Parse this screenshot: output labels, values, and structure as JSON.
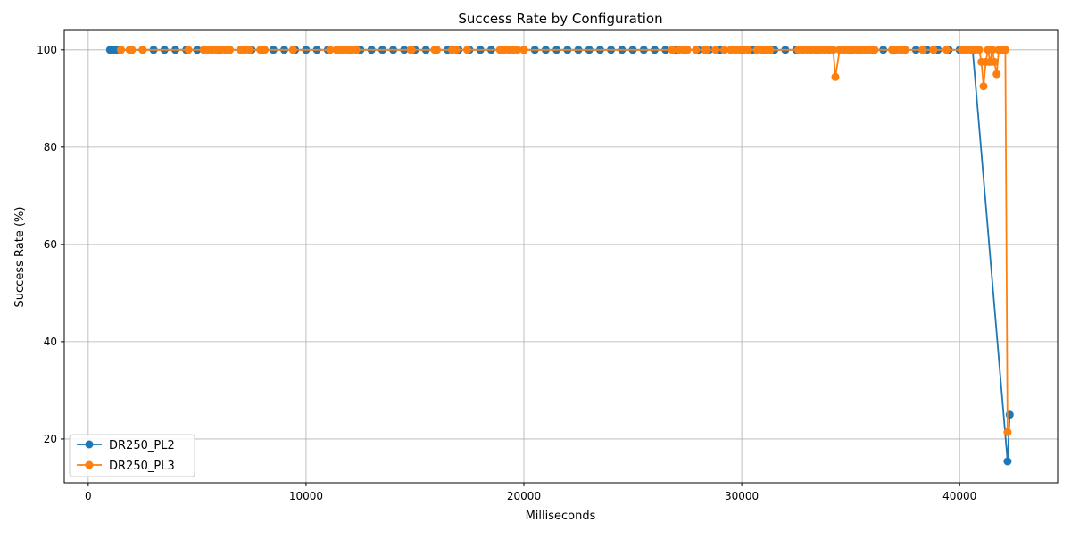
{
  "chart_data": {
    "type": "line",
    "title": "Success Rate by Configuration",
    "xlabel": "Milliseconds",
    "ylabel": "Success Rate (%)",
    "xlim": [
      -1100,
      44500
    ],
    "ylim": [
      11,
      104
    ],
    "xticks": [
      0,
      10000,
      20000,
      30000,
      40000
    ],
    "xtick_labels": [
      "0",
      "10000",
      "20000",
      "30000",
      "40000"
    ],
    "yticks": [
      20,
      40,
      60,
      80,
      100
    ],
    "ytick_labels": [
      "20",
      "40",
      "60",
      "80",
      "100"
    ],
    "grid": true,
    "legend_position": "lower-left",
    "series": [
      {
        "name": "DR250_PL2",
        "color": "#1f77b4",
        "x": [
          1000,
          1100,
          1200,
          1300,
          1500,
          2000,
          2500,
          3000,
          3500,
          4000,
          4500,
          5000,
          5500,
          6000,
          6500,
          7000,
          7500,
          8000,
          8500,
          9000,
          9500,
          10000,
          10500,
          11000,
          11500,
          12000,
          12500,
          13000,
          13500,
          14000,
          14500,
          15000,
          15500,
          16000,
          16500,
          17000,
          17500,
          18000,
          18500,
          19000,
          19500,
          20000,
          20500,
          21000,
          21500,
          22000,
          22500,
          23000,
          23500,
          24000,
          24500,
          25000,
          25500,
          26000,
          26500,
          27000,
          27500,
          28000,
          28500,
          29000,
          29500,
          30000,
          30500,
          31000,
          31500,
          32000,
          32500,
          33000,
          33500,
          34000,
          34500,
          35000,
          35500,
          36000,
          36500,
          37000,
          37500,
          38000,
          38500,
          39000,
          39500,
          40000,
          40300,
          40600,
          42200,
          42300
        ],
        "y": [
          100,
          100,
          100,
          100,
          100,
          100,
          100,
          100,
          100,
          100,
          100,
          100,
          100,
          100,
          100,
          100,
          100,
          100,
          100,
          100,
          100,
          100,
          100,
          100,
          100,
          100,
          100,
          100,
          100,
          100,
          100,
          100,
          100,
          100,
          100,
          100,
          100,
          100,
          100,
          100,
          100,
          100,
          100,
          100,
          100,
          100,
          100,
          100,
          100,
          100,
          100,
          100,
          100,
          100,
          100,
          100,
          100,
          100,
          100,
          100,
          100,
          100,
          100,
          100,
          100,
          100,
          100,
          100,
          100,
          100,
          100,
          100,
          100,
          100,
          100,
          100,
          100,
          100,
          100,
          100,
          100,
          100,
          100,
          100,
          15.4,
          25
        ]
      },
      {
        "name": "DR250_PL3",
        "color": "#ff7f0e",
        "x": [
          1500,
          1900,
          2000,
          2500,
          4600,
          5300,
          5500,
          5700,
          5900,
          6100,
          6300,
          6500,
          7000,
          7200,
          7400,
          7900,
          8100,
          9400,
          11100,
          11400,
          11500,
          11700,
          11900,
          12100,
          12300,
          14800,
          14850,
          15900,
          16000,
          16700,
          16900,
          17400,
          18900,
          19100,
          19300,
          19500,
          19700,
          20000,
          26800,
          27100,
          27300,
          27500,
          27900,
          28300,
          28400,
          28800,
          29200,
          29500,
          29700,
          29900,
          30100,
          30300,
          30700,
          30900,
          31100,
          31300,
          32600,
          32800,
          33000,
          33200,
          33400,
          33600,
          33800,
          34000,
          34200,
          34300,
          34500,
          34700,
          34900,
          35100,
          35300,
          35500,
          35700,
          35900,
          36100,
          36900,
          37100,
          37300,
          37500,
          38300,
          38800,
          39400,
          40100,
          40300,
          40500,
          40700,
          40900,
          41000,
          41100,
          41200,
          41300,
          41400,
          41500,
          41600,
          41700,
          41800,
          41900,
          42000,
          42100,
          42200
        ],
        "y": [
          100,
          100,
          100,
          100,
          100,
          100,
          100,
          100,
          100,
          100,
          100,
          100,
          100,
          100,
          100,
          100,
          100,
          100,
          100,
          100,
          100,
          100,
          100,
          100,
          100,
          100,
          100,
          100,
          100,
          100,
          100,
          100,
          100,
          100,
          100,
          100,
          100,
          100,
          100,
          100,
          100,
          100,
          100,
          100,
          100,
          100,
          100,
          100,
          100,
          100,
          100,
          100,
          100,
          100,
          100,
          100,
          100,
          100,
          100,
          100,
          100,
          100,
          100,
          100,
          100,
          94.4,
          100,
          100,
          100,
          100,
          100,
          100,
          100,
          100,
          100,
          100,
          100,
          100,
          100,
          100,
          100,
          100,
          100,
          100,
          100,
          100,
          100,
          97.5,
          92.5,
          97.5,
          100,
          97.5,
          100,
          97.5,
          95,
          100,
          100,
          100,
          100,
          21.4
        ]
      }
    ]
  }
}
